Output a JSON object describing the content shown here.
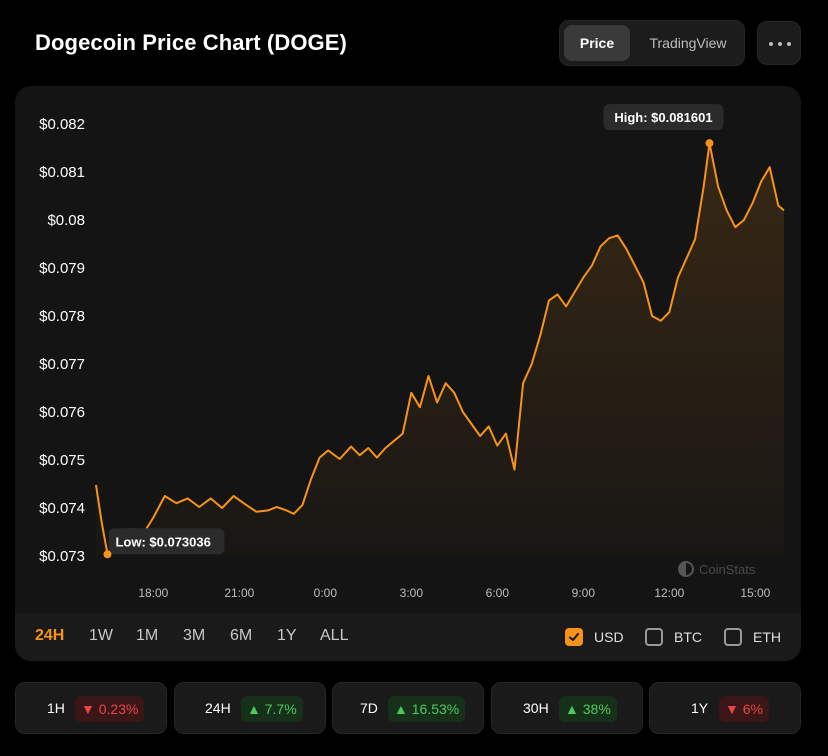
{
  "header": {
    "title": "Dogecoin Price Chart (DOGE)",
    "tabs": [
      {
        "label": "Price",
        "active": true
      },
      {
        "label": "TradingView",
        "active": false
      }
    ]
  },
  "chart_data": {
    "type": "area",
    "title": "Dogecoin Price Chart (DOGE)",
    "currency": "USD",
    "line_color": "#f7931a",
    "y_ticks": [
      0.082,
      0.081,
      0.08,
      0.079,
      0.078,
      0.077,
      0.076,
      0.075,
      0.074,
      0.073
    ],
    "y_tick_labels": [
      "$0.082",
      "$0.081",
      "$0.08",
      "$0.079",
      "$0.078",
      "$0.077",
      "$0.076",
      "$0.075",
      "$0.074",
      "$0.073"
    ],
    "ylim": [
      0.073,
      0.082
    ],
    "x_tick_labels": [
      "18:00",
      "21:00",
      "0:00",
      "3:00",
      "6:00",
      "9:00",
      "12:00",
      "15:00"
    ],
    "x_tick_hours": [
      2,
      5,
      8,
      11,
      14,
      17,
      20,
      23
    ],
    "xlim_hours": [
      0,
      24
    ],
    "high": {
      "label": "High: $0.081601",
      "value": 0.081601,
      "hour": 21.4
    },
    "low": {
      "label": "Low: $0.073036",
      "value": 0.073036,
      "hour": 0.4
    },
    "watermark": "CoinStats",
    "series": [
      {
        "name": "DOGE/USD",
        "points": [
          [
            0.0,
            0.07448
          ],
          [
            0.2,
            0.0737
          ],
          [
            0.4,
            0.07304
          ],
          [
            0.8,
            0.07328
          ],
          [
            1.2,
            0.07356
          ],
          [
            1.6,
            0.07342
          ],
          [
            2.0,
            0.0738
          ],
          [
            2.4,
            0.07425
          ],
          [
            2.8,
            0.0741
          ],
          [
            3.2,
            0.0742
          ],
          [
            3.6,
            0.07402
          ],
          [
            4.0,
            0.0742
          ],
          [
            4.4,
            0.074
          ],
          [
            4.8,
            0.07425
          ],
          [
            5.2,
            0.07408
          ],
          [
            5.6,
            0.07392
          ],
          [
            6.0,
            0.07395
          ],
          [
            6.3,
            0.07402
          ],
          [
            6.6,
            0.07396
          ],
          [
            6.9,
            0.07388
          ],
          [
            7.2,
            0.07406
          ],
          [
            7.5,
            0.0746
          ],
          [
            7.8,
            0.07505
          ],
          [
            8.1,
            0.0752
          ],
          [
            8.5,
            0.07502
          ],
          [
            8.9,
            0.07528
          ],
          [
            9.2,
            0.0751
          ],
          [
            9.5,
            0.07525
          ],
          [
            9.8,
            0.07505
          ],
          [
            10.1,
            0.07525
          ],
          [
            10.4,
            0.0754
          ],
          [
            10.7,
            0.07555
          ],
          [
            11.0,
            0.0764
          ],
          [
            11.3,
            0.0761
          ],
          [
            11.6,
            0.07675
          ],
          [
            11.9,
            0.0762
          ],
          [
            12.2,
            0.0766
          ],
          [
            12.5,
            0.0764
          ],
          [
            12.8,
            0.076
          ],
          [
            13.1,
            0.07575
          ],
          [
            13.4,
            0.0755
          ],
          [
            13.7,
            0.0757
          ],
          [
            14.0,
            0.0753
          ],
          [
            14.3,
            0.07555
          ],
          [
            14.6,
            0.0748
          ],
          [
            14.9,
            0.0766
          ],
          [
            15.2,
            0.077
          ],
          [
            15.5,
            0.0776
          ],
          [
            15.8,
            0.07832
          ],
          [
            16.1,
            0.07845
          ],
          [
            16.4,
            0.0782
          ],
          [
            16.7,
            0.0785
          ],
          [
            17.0,
            0.0788
          ],
          [
            17.3,
            0.07905
          ],
          [
            17.6,
            0.07945
          ],
          [
            17.9,
            0.07962
          ],
          [
            18.2,
            0.07968
          ],
          [
            18.5,
            0.0794
          ],
          [
            18.8,
            0.07905
          ],
          [
            19.1,
            0.0787
          ],
          [
            19.4,
            0.078
          ],
          [
            19.7,
            0.0779
          ],
          [
            20.0,
            0.07808
          ],
          [
            20.3,
            0.0788
          ],
          [
            20.6,
            0.0792
          ],
          [
            20.9,
            0.0796
          ],
          [
            21.2,
            0.0807
          ],
          [
            21.4,
            0.0816
          ],
          [
            21.7,
            0.0807
          ],
          [
            22.0,
            0.0802
          ],
          [
            22.3,
            0.07985
          ],
          [
            22.6,
            0.08
          ],
          [
            22.9,
            0.08035
          ],
          [
            23.2,
            0.0808
          ],
          [
            23.5,
            0.0811
          ],
          [
            23.8,
            0.0803
          ],
          [
            24.0,
            0.0802
          ]
        ]
      }
    ]
  },
  "ranges": [
    {
      "label": "24H",
      "active": true
    },
    {
      "label": "1W",
      "active": false
    },
    {
      "label": "1M",
      "active": false
    },
    {
      "label": "3M",
      "active": false
    },
    {
      "label": "6M",
      "active": false
    },
    {
      "label": "1Y",
      "active": false
    },
    {
      "label": "ALL",
      "active": false
    }
  ],
  "currencies": [
    {
      "label": "USD",
      "checked": true
    },
    {
      "label": "BTC",
      "checked": false
    },
    {
      "label": "ETH",
      "checked": false
    }
  ],
  "stats": [
    {
      "period": "1H",
      "change": "0.23%",
      "direction": "down"
    },
    {
      "period": "24H",
      "change": "7.7%",
      "direction": "up"
    },
    {
      "period": "7D",
      "change": "16.53%",
      "direction": "up"
    },
    {
      "period": "30H",
      "change": "38%",
      "direction": "up"
    },
    {
      "period": "1Y",
      "change": "6%",
      "direction": "down"
    }
  ],
  "colors": {
    "accent": "#f7931a",
    "up": "#4ccb5c",
    "down": "#e64646"
  }
}
